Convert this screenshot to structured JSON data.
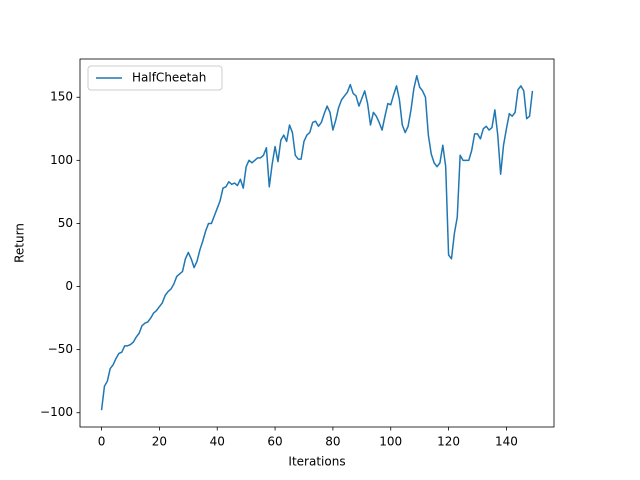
{
  "chart_data": {
    "type": "line",
    "xlabel": "Iterations",
    "ylabel": "Return",
    "x": [
      0,
      1,
      2,
      3,
      4,
      5,
      6,
      7,
      8,
      9,
      10,
      11,
      12,
      13,
      14,
      15,
      16,
      17,
      18,
      19,
      20,
      21,
      22,
      23,
      24,
      25,
      26,
      27,
      28,
      29,
      30,
      31,
      32,
      33,
      34,
      35,
      36,
      37,
      38,
      39,
      40,
      41,
      42,
      43,
      44,
      45,
      46,
      47,
      48,
      49,
      50,
      51,
      52,
      53,
      54,
      55,
      56,
      57,
      58,
      59,
      60,
      61,
      62,
      63,
      64,
      65,
      66,
      67,
      68,
      69,
      70,
      71,
      72,
      73,
      74,
      75,
      76,
      77,
      78,
      79,
      80,
      81,
      82,
      83,
      84,
      85,
      86,
      87,
      88,
      89,
      90,
      91,
      92,
      93,
      94,
      95,
      96,
      97,
      98,
      99,
      100,
      101,
      102,
      103,
      104,
      105,
      106,
      107,
      108,
      109,
      110,
      111,
      112,
      113,
      114,
      115,
      116,
      117,
      118,
      119,
      120,
      121,
      122,
      123,
      124,
      125,
      126,
      127,
      128,
      129,
      130,
      131,
      132,
      133,
      134,
      135,
      136,
      137,
      138,
      139,
      140,
      141,
      142,
      143,
      144,
      145,
      146,
      147,
      148,
      149
    ],
    "series": [
      {
        "name": "HalfCheetah",
        "color": "#1f77b4",
        "values": [
          -98,
          -79,
          -75,
          -65,
          -62,
          -57,
          -53,
          -52,
          -47,
          -47,
          -46,
          -44,
          -40,
          -37,
          -31,
          -29,
          -28,
          -25,
          -21,
          -19,
          -16,
          -13,
          -7,
          -4,
          -2,
          2,
          8,
          10,
          12,
          22,
          27,
          22,
          15,
          20,
          29,
          36,
          44,
          50,
          50,
          56,
          62,
          68,
          78,
          79,
          83,
          81,
          82,
          80,
          85,
          78,
          95,
          100,
          98,
          100,
          102,
          102,
          104,
          110,
          79,
          97,
          111,
          99,
          116,
          120,
          115,
          128,
          122,
          104,
          101,
          101,
          115,
          120,
          122,
          130,
          131,
          127,
          130,
          137,
          143,
          138,
          124,
          132,
          142,
          148,
          151,
          154,
          160,
          153,
          151,
          143,
          149,
          155,
          145,
          128,
          138,
          135,
          130,
          124,
          135,
          145,
          144,
          152,
          159,
          148,
          128,
          122,
          127,
          140,
          157,
          167,
          158,
          155,
          150,
          120,
          105,
          98,
          95,
          98,
          112,
          95,
          25,
          22,
          42,
          55,
          104,
          100,
          100,
          100,
          108,
          121,
          121,
          117,
          125,
          127,
          124,
          126,
          140,
          120,
          89,
          112,
          125,
          137,
          135,
          138,
          156,
          159,
          155,
          133,
          135,
          155
        ]
      }
    ],
    "xlim": [
      -7.45,
      156.45
    ],
    "ylim": [
      -111.3,
      180.3
    ],
    "xticks": [
      0,
      20,
      40,
      60,
      80,
      100,
      120,
      140
    ],
    "yticks": [
      {
        "value": -100,
        "label": "−100"
      },
      {
        "value": -50,
        "label": "−50"
      },
      0,
      50,
      100,
      150
    ],
    "legend": "upper left"
  }
}
